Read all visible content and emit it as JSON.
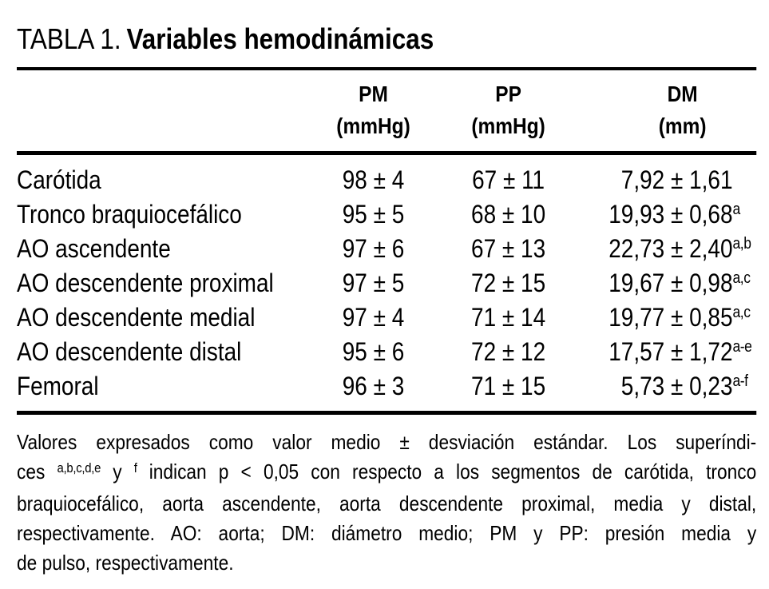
{
  "title": {
    "label": "TABLA 1.",
    "text": "Variables hemodinámicas"
  },
  "table": {
    "columns": [
      {
        "abbr": "PM",
        "unit": "(mmHg)"
      },
      {
        "abbr": "PP",
        "unit": "(mmHg)"
      },
      {
        "abbr": "DM",
        "unit": "(mm)"
      }
    ],
    "rows": [
      {
        "label": "Carótida",
        "pm": "98 ± 4",
        "pp": "67 ± 11",
        "dm": "7,92 ± 1,61",
        "dm_sup": ""
      },
      {
        "label": "Tronco braquiocefálico",
        "pm": "95 ± 5",
        "pp": "68 ± 10",
        "dm": "19,93 ± 0,68",
        "dm_sup": "a"
      },
      {
        "label": "AO ascendente",
        "pm": "97 ± 6",
        "pp": "67 ± 13",
        "dm": "22,73 ± 2,40",
        "dm_sup": "a,b"
      },
      {
        "label": "AO descendente proximal",
        "pm": "97 ± 5",
        "pp": "72 ± 15",
        "dm": "19,67 ± 0,98",
        "dm_sup": "a,c"
      },
      {
        "label": "AO descendente medial",
        "pm": "97 ± 4",
        "pp": "71 ± 14",
        "dm": "19,77 ± 0,85",
        "dm_sup": "a,c"
      },
      {
        "label": "AO descendente distal",
        "pm": "95 ± 6",
        "pp": "72 ± 12",
        "dm": "17,57 ± 1,72",
        "dm_sup": "a-e"
      },
      {
        "label": "Femoral",
        "pm": "96 ± 3",
        "pp": "71 ± 15",
        "dm": "5,73 ± 0,23",
        "dm_sup": "a-f"
      }
    ]
  },
  "footnote": {
    "line1": "Valores expresados como valor medio ± desviación estándar. Los superíndi-",
    "line2_pre": "ces ",
    "line2_sup1": "a,b,c,d,e",
    "line2_mid": " y ",
    "line2_sup2": "f",
    "line2_post": " indican p < 0,05 con respecto a los segmentos de carótida, tronco",
    "line3": "braquiocefálico, aorta ascendente, aorta descendente proximal, media y distal,",
    "line4": "respectivamente. AO: aorta; DM: diámetro medio; PM y PP: presión media y",
    "line5": "de pulso, respectivamente."
  }
}
